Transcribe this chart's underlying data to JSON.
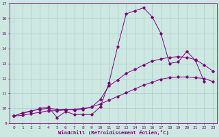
{
  "xlabel": "Windchill (Refroidissement éolien,°C)",
  "background_color": "#cce8e0",
  "line_color": "#800080",
  "grid_color": "#aacccc",
  "xlim": [
    -0.5,
    23.5
  ],
  "ylim": [
    9,
    17
  ],
  "yticks": [
    9,
    10,
    11,
    12,
    13,
    14,
    15,
    16,
    17
  ],
  "xticks": [
    0,
    1,
    2,
    3,
    4,
    5,
    6,
    7,
    8,
    9,
    10,
    11,
    12,
    13,
    14,
    15,
    16,
    17,
    18,
    19,
    20,
    21,
    22,
    23
  ],
  "s1": [
    9.5,
    9.7,
    9.8,
    10.0,
    10.1,
    9.4,
    9.8,
    9.6,
    9.6,
    9.6,
    10.1,
    11.7,
    14.1,
    16.3,
    16.5,
    16.7,
    16.1,
    15.0,
    13.0,
    13.1,
    13.8,
    13.2,
    11.8,
    null
  ],
  "s2": [
    9.5,
    9.55,
    9.65,
    9.75,
    9.85,
    9.85,
    9.9,
    9.95,
    10.0,
    10.1,
    10.3,
    10.55,
    10.8,
    11.05,
    11.3,
    11.55,
    11.75,
    11.95,
    12.05,
    12.1,
    12.1,
    12.05,
    12.0,
    11.8
  ],
  "s3": [
    9.5,
    9.7,
    9.85,
    9.95,
    10.0,
    9.95,
    9.95,
    9.9,
    9.95,
    10.1,
    10.6,
    11.5,
    11.9,
    12.35,
    12.6,
    12.9,
    13.15,
    13.3,
    13.4,
    13.45,
    13.4,
    13.25,
    12.9,
    12.5
  ]
}
